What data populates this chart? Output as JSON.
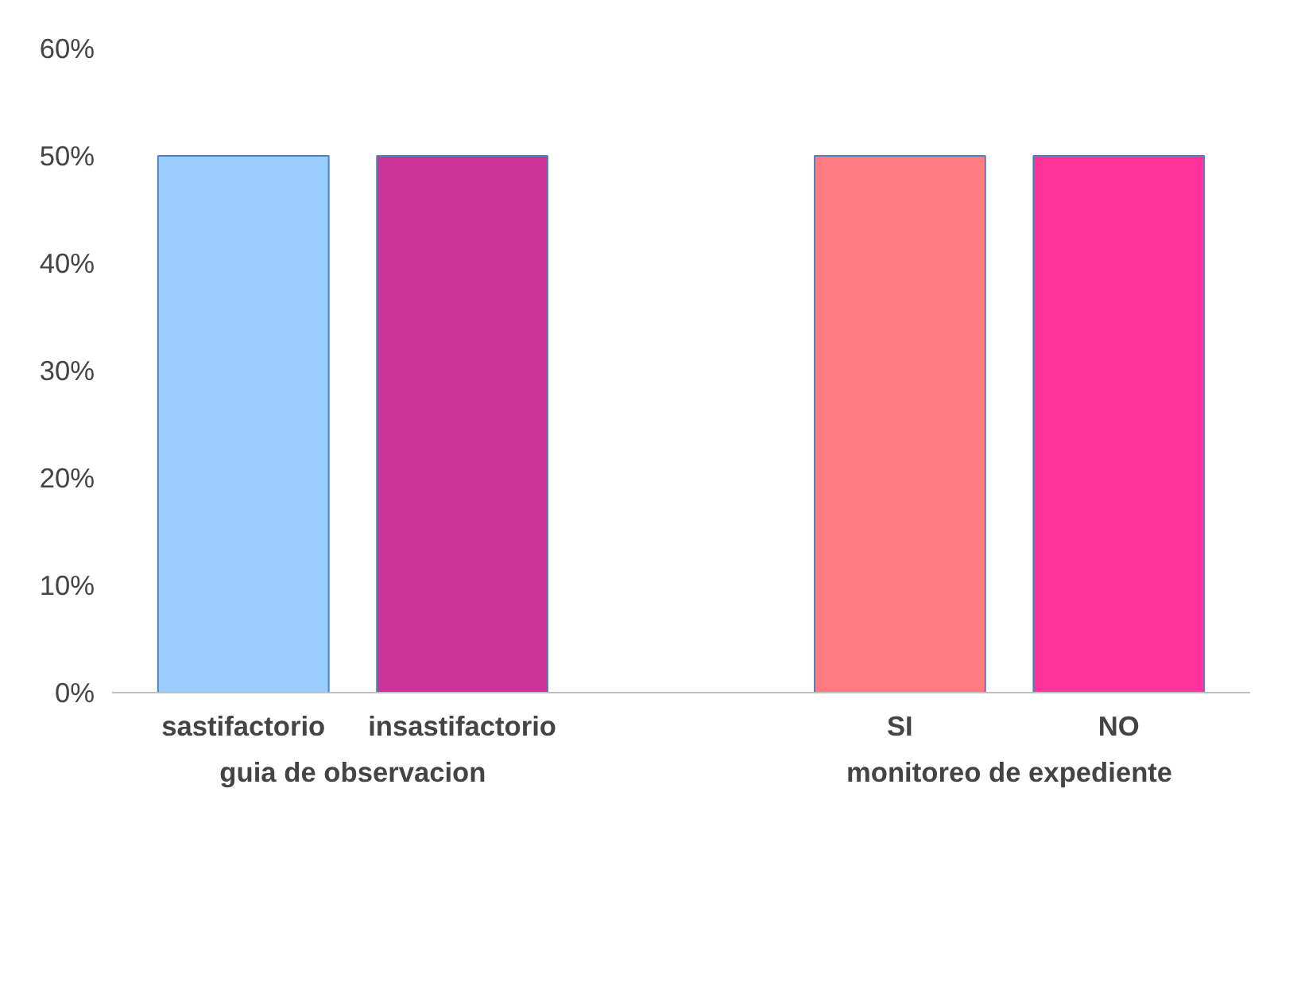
{
  "chart_data": {
    "type": "bar",
    "categories": [
      "sastifactorio",
      "insastifactorio",
      null,
      "SI",
      "NO"
    ],
    "values": [
      50,
      50,
      null,
      50,
      50
    ],
    "colors": [
      "#99ccff",
      "#cc3399",
      null,
      "#ff7c80",
      "#ff3399"
    ],
    "ylim": [
      0,
      60
    ],
    "yticks": [
      {
        "value": 0,
        "label": "0%"
      },
      {
        "value": 10,
        "label": "10%"
      },
      {
        "value": 20,
        "label": "20%"
      },
      {
        "value": 30,
        "label": "30%"
      },
      {
        "value": 40,
        "label": "40%"
      },
      {
        "value": 50,
        "label": "50%"
      },
      {
        "value": 60,
        "label": "60%"
      }
    ],
    "annotations": [
      "guia de observacion",
      "monitoreo de expediente"
    ],
    "grid": false
  }
}
